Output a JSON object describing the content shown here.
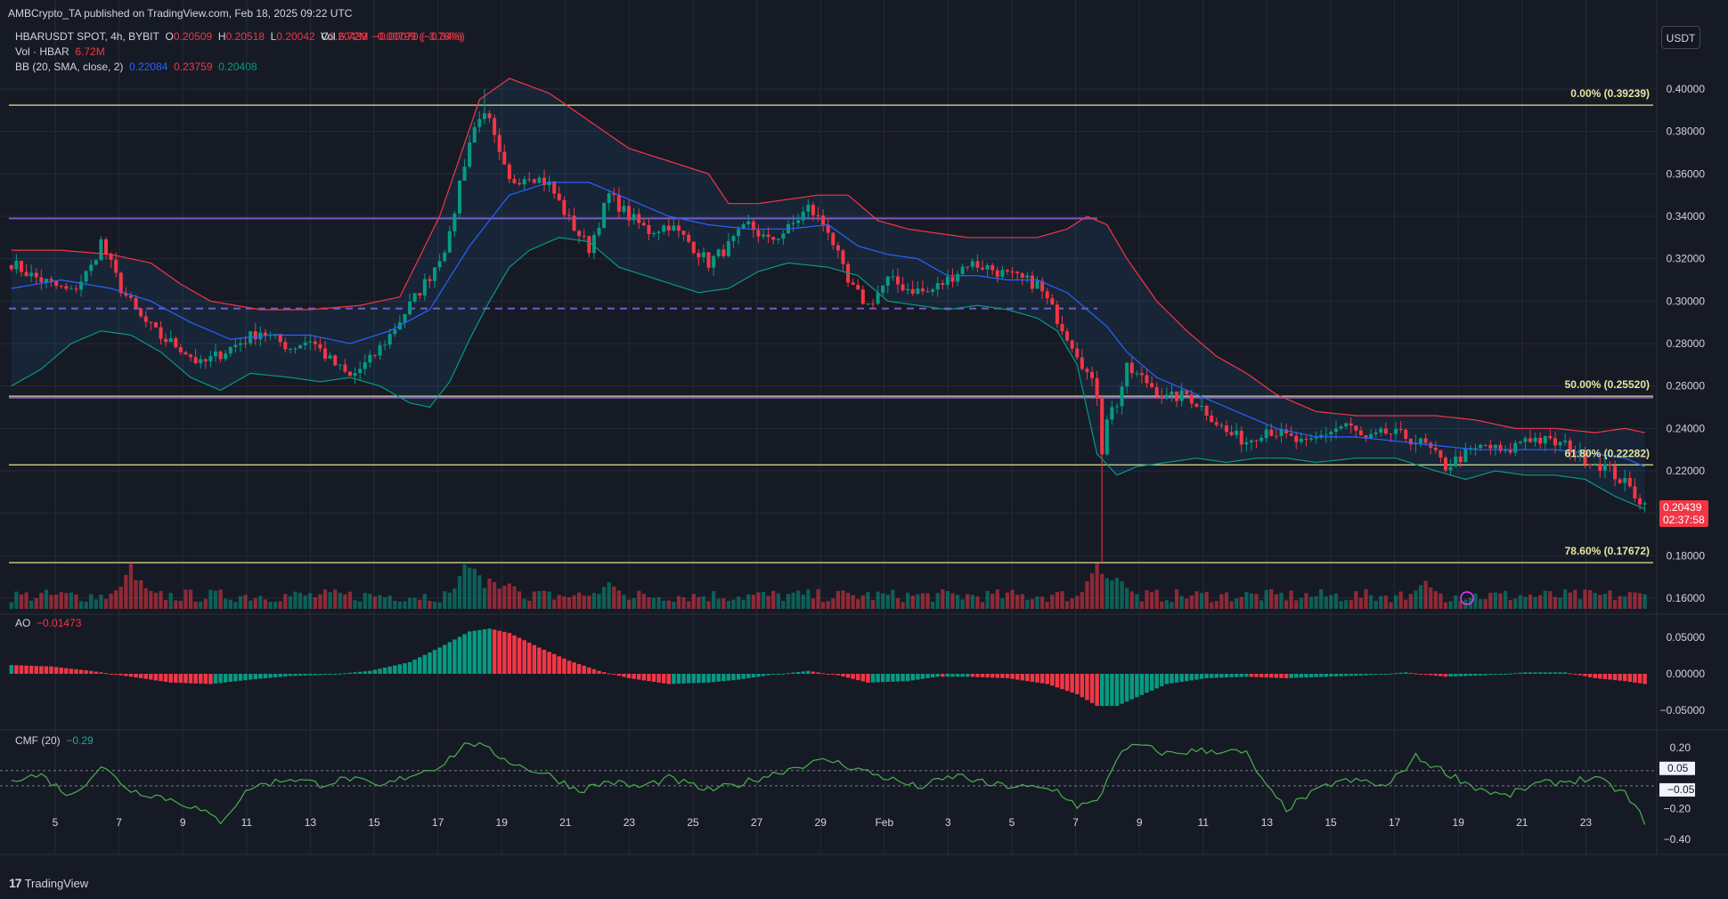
{
  "header": {
    "published": "AMBCrypto_TA published on TradingView.com, Feb 18, 2025 09:22 UTC",
    "symbol": "HBARUSDT SPOT, 4h, BYBIT",
    "o_label": "O",
    "o_value": "0.20509",
    "h_label": "H",
    "h_value": "0.20518",
    "l_label": "L",
    "l_value": "0.20042",
    "c_label": "C",
    "c_value": "0.20439",
    "change": "−0.00070 (−0.34%)",
    "vol_label": "Vol · HBAR",
    "vol_value": "6.72M",
    "vol_change": "−0.00799 (−3.76%)",
    "bb_label": "BB (20, SMA, close, 2)",
    "bb_basis": "0.22084",
    "bb_upper": "0.23759",
    "bb_lower": "0.20408",
    "ao_label": "AO",
    "ao_value": "−0.01473",
    "cmf_label": "CMF (20)",
    "cmf_value": "−0.29"
  },
  "currency_button": "USDT",
  "footer": {
    "brand": "TradingView",
    "logo": "17"
  },
  "price_tag": {
    "value": "0.20439",
    "countdown": "02:37:58"
  },
  "colors": {
    "bg": "#161a25",
    "up": "#089981",
    "down": "#f23645",
    "bb_upper": "#f23645",
    "bb_basis": "#2962ff",
    "bb_lower": "#089981",
    "fib": "#e6e68a",
    "level": "#7e57c2",
    "cmf": "#4caf50",
    "grid": "#252a37",
    "text": "#d1d4dc"
  },
  "chart_data": {
    "type": "candlestick",
    "title": "",
    "price_axis": {
      "ticks": [
        "0.40000",
        "0.38000",
        "0.36000",
        "0.34000",
        "0.32000",
        "0.30000",
        "0.28000",
        "0.26000",
        "0.24000",
        "0.22000",
        "0.20000",
        "0.18000",
        "0.16000"
      ],
      "range": [
        0.155,
        0.42
      ]
    },
    "x_axis": {
      "ticks": [
        "5",
        "7",
        "9",
        "11",
        "13",
        "15",
        "17",
        "19",
        "21",
        "23",
        "25",
        "27",
        "29",
        "Feb",
        "3",
        "5",
        "7",
        "9",
        "11",
        "13",
        "15",
        "17",
        "19",
        "21",
        "23"
      ]
    },
    "price_keypoints": [
      [
        0,
        0.318
      ],
      [
        4,
        0.312
      ],
      [
        8,
        0.308
      ],
      [
        12,
        0.304
      ],
      [
        16,
        0.316
      ],
      [
        18,
        0.328
      ],
      [
        22,
        0.306
      ],
      [
        26,
        0.292
      ],
      [
        30,
        0.283
      ],
      [
        34,
        0.278
      ],
      [
        38,
        0.27
      ],
      [
        44,
        0.278
      ],
      [
        50,
        0.286
      ],
      [
        56,
        0.278
      ],
      [
        60,
        0.282
      ],
      [
        64,
        0.272
      ],
      [
        68,
        0.264
      ],
      [
        72,
        0.272
      ],
      [
        76,
        0.284
      ],
      [
        80,
        0.298
      ],
      [
        84,
        0.312
      ],
      [
        88,
        0.33
      ],
      [
        90,
        0.356
      ],
      [
        92,
        0.375
      ],
      [
        94,
        0.388
      ],
      [
        96,
        0.384
      ],
      [
        98,
        0.368
      ],
      [
        100,
        0.356
      ],
      [
        104,
        0.36
      ],
      [
        108,
        0.355
      ],
      [
        112,
        0.338
      ],
      [
        116,
        0.325
      ],
      [
        120,
        0.35
      ],
      [
        124,
        0.34
      ],
      [
        128,
        0.333
      ],
      [
        132,
        0.336
      ],
      [
        136,
        0.328
      ],
      [
        140,
        0.318
      ],
      [
        144,
        0.326
      ],
      [
        148,
        0.336
      ],
      [
        152,
        0.328
      ],
      [
        156,
        0.334
      ],
      [
        160,
        0.344
      ],
      [
        164,
        0.334
      ],
      [
        168,
        0.308
      ],
      [
        172,
        0.298
      ],
      [
        176,
        0.31
      ],
      [
        180,
        0.306
      ],
      [
        184,
        0.304
      ],
      [
        188,
        0.31
      ],
      [
        192,
        0.318
      ],
      [
        196,
        0.316
      ],
      [
        200,
        0.312
      ],
      [
        206,
        0.308
      ],
      [
        210,
        0.292
      ],
      [
        214,
        0.276
      ],
      [
        218,
        0.256
      ],
      [
        219,
        0.23
      ],
      [
        220,
        0.246
      ],
      [
        222,
        0.252
      ],
      [
        224,
        0.268
      ],
      [
        228,
        0.262
      ],
      [
        232,
        0.254
      ],
      [
        236,
        0.256
      ],
      [
        240,
        0.248
      ],
      [
        244,
        0.238
      ],
      [
        248,
        0.234
      ],
      [
        252,
        0.24
      ],
      [
        256,
        0.236
      ],
      [
        260,
        0.232
      ],
      [
        264,
        0.238
      ],
      [
        268,
        0.242
      ],
      [
        272,
        0.234
      ],
      [
        276,
        0.238
      ],
      [
        280,
        0.236
      ],
      [
        284,
        0.232
      ],
      [
        288,
        0.222
      ],
      [
        292,
        0.228
      ],
      [
        296,
        0.232
      ],
      [
        300,
        0.228
      ],
      [
        304,
        0.236
      ],
      [
        308,
        0.234
      ],
      [
        312,
        0.232
      ],
      [
        316,
        0.226
      ],
      [
        320,
        0.222
      ],
      [
        324,
        0.214
      ],
      [
        328,
        0.204
      ]
    ],
    "bb_upper_keypoints": [
      [
        0,
        0.324
      ],
      [
        10,
        0.324
      ],
      [
        20,
        0.322
      ],
      [
        28,
        0.318
      ],
      [
        34,
        0.308
      ],
      [
        40,
        0.3
      ],
      [
        50,
        0.296
      ],
      [
        60,
        0.296
      ],
      [
        70,
        0.298
      ],
      [
        78,
        0.302
      ],
      [
        86,
        0.34
      ],
      [
        94,
        0.395
      ],
      [
        100,
        0.405
      ],
      [
        108,
        0.398
      ],
      [
        116,
        0.385
      ],
      [
        124,
        0.372
      ],
      [
        132,
        0.366
      ],
      [
        140,
        0.36
      ],
      [
        144,
        0.346
      ],
      [
        150,
        0.346
      ],
      [
        156,
        0.348
      ],
      [
        162,
        0.35
      ],
      [
        168,
        0.35
      ],
      [
        174,
        0.338
      ],
      [
        180,
        0.334
      ],
      [
        186,
        0.332
      ],
      [
        192,
        0.33
      ],
      [
        200,
        0.33
      ],
      [
        206,
        0.33
      ],
      [
        212,
        0.334
      ],
      [
        216,
        0.34
      ],
      [
        220,
        0.336
      ],
      [
        224,
        0.32
      ],
      [
        230,
        0.3
      ],
      [
        236,
        0.286
      ],
      [
        242,
        0.274
      ],
      [
        248,
        0.266
      ],
      [
        254,
        0.256
      ],
      [
        262,
        0.248
      ],
      [
        270,
        0.246
      ],
      [
        278,
        0.246
      ],
      [
        286,
        0.246
      ],
      [
        294,
        0.244
      ],
      [
        302,
        0.24
      ],
      [
        310,
        0.24
      ],
      [
        318,
        0.238
      ],
      [
        324,
        0.24
      ],
      [
        328,
        0.238
      ]
    ],
    "bb_basis_keypoints": [
      [
        0,
        0.306
      ],
      [
        10,
        0.31
      ],
      [
        20,
        0.306
      ],
      [
        28,
        0.3
      ],
      [
        36,
        0.29
      ],
      [
        44,
        0.282
      ],
      [
        52,
        0.284
      ],
      [
        60,
        0.284
      ],
      [
        68,
        0.28
      ],
      [
        76,
        0.286
      ],
      [
        84,
        0.296
      ],
      [
        92,
        0.326
      ],
      [
        100,
        0.35
      ],
      [
        108,
        0.356
      ],
      [
        116,
        0.356
      ],
      [
        124,
        0.348
      ],
      [
        132,
        0.34
      ],
      [
        140,
        0.336
      ],
      [
        148,
        0.334
      ],
      [
        156,
        0.334
      ],
      [
        164,
        0.336
      ],
      [
        170,
        0.326
      ],
      [
        176,
        0.322
      ],
      [
        182,
        0.32
      ],
      [
        188,
        0.312
      ],
      [
        194,
        0.312
      ],
      [
        200,
        0.31
      ],
      [
        206,
        0.31
      ],
      [
        212,
        0.304
      ],
      [
        216,
        0.296
      ],
      [
        220,
        0.288
      ],
      [
        224,
        0.276
      ],
      [
        230,
        0.264
      ],
      [
        236,
        0.258
      ],
      [
        242,
        0.252
      ],
      [
        248,
        0.246
      ],
      [
        254,
        0.24
      ],
      [
        262,
        0.236
      ],
      [
        270,
        0.236
      ],
      [
        278,
        0.234
      ],
      [
        286,
        0.232
      ],
      [
        294,
        0.23
      ],
      [
        302,
        0.23
      ],
      [
        310,
        0.23
      ],
      [
        318,
        0.228
      ],
      [
        324,
        0.226
      ],
      [
        328,
        0.222
      ]
    ],
    "bb_lower_keypoints": [
      [
        0,
        0.26
      ],
      [
        6,
        0.268
      ],
      [
        12,
        0.28
      ],
      [
        18,
        0.286
      ],
      [
        24,
        0.284
      ],
      [
        30,
        0.276
      ],
      [
        36,
        0.264
      ],
      [
        42,
        0.258
      ],
      [
        48,
        0.266
      ],
      [
        56,
        0.264
      ],
      [
        62,
        0.262
      ],
      [
        68,
        0.264
      ],
      [
        74,
        0.26
      ],
      [
        80,
        0.252
      ],
      [
        84,
        0.25
      ],
      [
        88,
        0.262
      ],
      [
        92,
        0.282
      ],
      [
        96,
        0.3
      ],
      [
        100,
        0.316
      ],
      [
        104,
        0.324
      ],
      [
        110,
        0.33
      ],
      [
        116,
        0.328
      ],
      [
        122,
        0.316
      ],
      [
        130,
        0.31
      ],
      [
        138,
        0.304
      ],
      [
        144,
        0.306
      ],
      [
        150,
        0.314
      ],
      [
        156,
        0.318
      ],
      [
        164,
        0.316
      ],
      [
        170,
        0.312
      ],
      [
        176,
        0.3
      ],
      [
        182,
        0.298
      ],
      [
        188,
        0.296
      ],
      [
        194,
        0.298
      ],
      [
        200,
        0.296
      ],
      [
        206,
        0.292
      ],
      [
        210,
        0.286
      ],
      [
        214,
        0.27
      ],
      [
        218,
        0.228
      ],
      [
        222,
        0.218
      ],
      [
        226,
        0.222
      ],
      [
        232,
        0.224
      ],
      [
        238,
        0.226
      ],
      [
        244,
        0.224
      ],
      [
        250,
        0.226
      ],
      [
        256,
        0.226
      ],
      [
        262,
        0.224
      ],
      [
        270,
        0.226
      ],
      [
        278,
        0.226
      ],
      [
        286,
        0.22
      ],
      [
        292,
        0.216
      ],
      [
        298,
        0.22
      ],
      [
        304,
        0.218
      ],
      [
        310,
        0.218
      ],
      [
        316,
        0.216
      ],
      [
        322,
        0.208
      ],
      [
        328,
        0.202
      ]
    ],
    "volume_spikes": [
      [
        24,
        1.0
      ],
      [
        92,
        1.0
      ],
      [
        96,
        0.65
      ],
      [
        218,
        1.0
      ],
      [
        222,
        0.9
      ],
      [
        284,
        0.55
      ],
      [
        120,
        0.6
      ],
      [
        100,
        0.55
      ]
    ],
    "ao_keypoints": [
      [
        0,
        0.012
      ],
      [
        8,
        0.01
      ],
      [
        16,
        0.004
      ],
      [
        24,
        -0.004
      ],
      [
        32,
        -0.012
      ],
      [
        40,
        -0.014
      ],
      [
        48,
        -0.008
      ],
      [
        56,
        -0.003
      ],
      [
        64,
        -0.001
      ],
      [
        72,
        0.004
      ],
      [
        80,
        0.016
      ],
      [
        86,
        0.036
      ],
      [
        92,
        0.058
      ],
      [
        96,
        0.062
      ],
      [
        100,
        0.056
      ],
      [
        106,
        0.036
      ],
      [
        112,
        0.018
      ],
      [
        118,
        0.004
      ],
      [
        124,
        -0.006
      ],
      [
        132,
        -0.014
      ],
      [
        140,
        -0.012
      ],
      [
        146,
        -0.008
      ],
      [
        152,
        -0.002
      ],
      [
        160,
        0.004
      ],
      [
        166,
        -0.002
      ],
      [
        172,
        -0.012
      ],
      [
        180,
        -0.01
      ],
      [
        186,
        -0.004
      ],
      [
        192,
        -0.004
      ],
      [
        200,
        -0.006
      ],
      [
        208,
        -0.014
      ],
      [
        214,
        -0.028
      ],
      [
        218,
        -0.044
      ],
      [
        222,
        -0.044
      ],
      [
        226,
        -0.032
      ],
      [
        232,
        -0.014
      ],
      [
        240,
        -0.006
      ],
      [
        248,
        -0.004
      ],
      [
        256,
        -0.006
      ],
      [
        264,
        -0.004
      ],
      [
        272,
        -0.002
      ],
      [
        280,
        0.002
      ],
      [
        288,
        -0.004
      ],
      [
        296,
        -0.002
      ],
      [
        304,
        0.002
      ],
      [
        312,
        0.002
      ],
      [
        318,
        -0.006
      ],
      [
        324,
        -0.01
      ],
      [
        328,
        -0.014
      ]
    ],
    "ao_axis": {
      "ticks": [
        "0.05000",
        "0.00000",
        "−0.05000"
      ]
    },
    "cmf_keypoints": [
      [
        0,
        0.0
      ],
      [
        6,
        0.02
      ],
      [
        12,
        -0.12
      ],
      [
        18,
        0.08
      ],
      [
        24,
        -0.08
      ],
      [
        30,
        -0.12
      ],
      [
        36,
        -0.18
      ],
      [
        42,
        -0.28
      ],
      [
        48,
        -0.06
      ],
      [
        56,
        0.0
      ],
      [
        62,
        -0.04
      ],
      [
        68,
        0.0
      ],
      [
        74,
        -0.06
      ],
      [
        80,
        0.02
      ],
      [
        86,
        0.08
      ],
      [
        92,
        0.24
      ],
      [
        96,
        0.18
      ],
      [
        102,
        0.08
      ],
      [
        108,
        0.02
      ],
      [
        114,
        -0.08
      ],
      [
        120,
        -0.02
      ],
      [
        126,
        -0.06
      ],
      [
        132,
        0.0
      ],
      [
        140,
        -0.08
      ],
      [
        146,
        -0.04
      ],
      [
        152,
        0.02
      ],
      [
        158,
        0.08
      ],
      [
        164,
        0.12
      ],
      [
        170,
        0.06
      ],
      [
        176,
        0.0
      ],
      [
        182,
        -0.06
      ],
      [
        190,
        0.02
      ],
      [
        196,
        -0.04
      ],
      [
        204,
        -0.06
      ],
      [
        210,
        -0.08
      ],
      [
        214,
        -0.18
      ],
      [
        218,
        -0.16
      ],
      [
        222,
        0.14
      ],
      [
        226,
        0.22
      ],
      [
        232,
        0.16
      ],
      [
        238,
        0.18
      ],
      [
        244,
        0.18
      ],
      [
        248,
        0.16
      ],
      [
        252,
        -0.06
      ],
      [
        256,
        -0.2
      ],
      [
        260,
        -0.12
      ],
      [
        266,
        -0.02
      ],
      [
        272,
        -0.02
      ],
      [
        276,
        -0.06
      ],
      [
        282,
        0.14
      ],
      [
        288,
        0.04
      ],
      [
        294,
        -0.06
      ],
      [
        300,
        -0.12
      ],
      [
        306,
        -0.04
      ],
      [
        312,
        -0.02
      ],
      [
        318,
        0.0
      ],
      [
        324,
        -0.1
      ],
      [
        328,
        -0.28
      ]
    ],
    "cmf_axis": {
      "ticks": [
        "0.20",
        "0.05",
        "−0.05",
        "−0.20",
        "−0.40"
      ]
    },
    "fib_levels": [
      {
        "label": "0.00% (0.39239)",
        "price": 0.39239
      },
      {
        "label": "50.00% (0.25520)",
        "price": 0.2552
      },
      {
        "label": "61.80% (0.22282)",
        "price": 0.22282
      },
      {
        "label": "78.60% (0.17672)",
        "price": 0.17672
      }
    ],
    "purple_levels": [
      {
        "price": 0.339,
        "style": "solid",
        "extent": "partial"
      },
      {
        "price": 0.2965,
        "style": "dashed",
        "extent": "partial"
      },
      {
        "price": 0.2545,
        "style": "solid",
        "extent": "full"
      }
    ]
  }
}
